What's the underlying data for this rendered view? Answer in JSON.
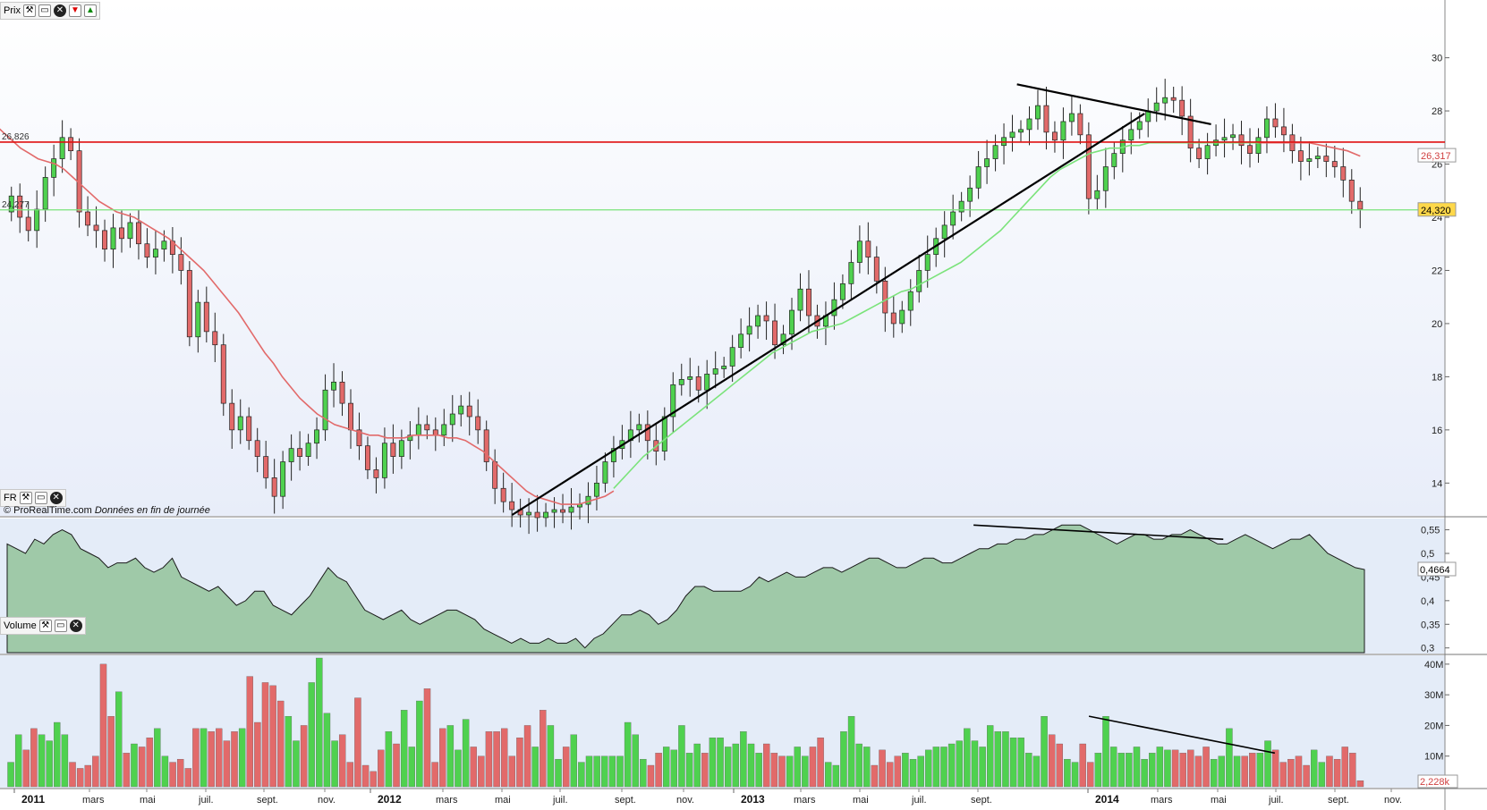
{
  "panels": {
    "price": {
      "label": "Prix"
    },
    "fr": {
      "label": "FR"
    },
    "volume": {
      "label": "Volume"
    }
  },
  "credit": {
    "site": "© ProRealTime.com",
    "source": "Données en fin de journée"
  },
  "colors": {
    "up": "#4fd14f",
    "down": "#e26a6a",
    "ma_long": "#e26a6a",
    "ma_short": "#7be37b",
    "resistance": "#e01010",
    "support": "#7be37b",
    "fr_fill": "#9fc9a8",
    "trendline": "#000000"
  },
  "chart_data": [
    {
      "type": "candlestick",
      "panel": "price",
      "y_ticks": [
        14,
        16,
        18,
        20,
        22,
        24,
        26,
        28,
        30
      ],
      "ylim": [
        12.8,
        31.5
      ],
      "price_labels": {
        "resistance": "26,826",
        "current": "24,320",
        "ma_long": "26,317",
        "support_left": "24,277"
      },
      "horizontal_lines": [
        {
          "name": "resistance",
          "value": 26.826
        },
        {
          "name": "support",
          "value": 24.277
        }
      ],
      "x_axis": {
        "year_labels": [
          "2011",
          "2012",
          "2013",
          "2014"
        ],
        "month_labels": [
          "mars",
          "mai",
          "juil.",
          "sept.",
          "nov.",
          "mars",
          "mai",
          "juil.",
          "sept.",
          "nov.",
          "mars",
          "mai",
          "juil.",
          "sept.",
          "mars",
          "mai",
          "juil.",
          "sept.",
          "nov."
        ]
      },
      "series": [
        {
          "name": "Close",
          "values": [
            24.8,
            24.0,
            23.5,
            24.3,
            25.5,
            26.2,
            27.0,
            26.5,
            24.2,
            23.7,
            23.5,
            22.8,
            23.6,
            23.2,
            23.8,
            23.0,
            22.5,
            22.8,
            23.1,
            22.6,
            22.0,
            19.5,
            20.8,
            19.7,
            19.2,
            17.0,
            16.0,
            16.5,
            15.6,
            15.0,
            14.2,
            13.5,
            14.8,
            15.3,
            15.0,
            15.5,
            16.0,
            17.5,
            17.8,
            17.0,
            16.0,
            15.4,
            14.5,
            14.2,
            15.5,
            15.0,
            15.6,
            15.8,
            16.2,
            16.0,
            15.8,
            16.2,
            16.6,
            16.9,
            16.5,
            16.0,
            14.8,
            13.8,
            13.3,
            13.0,
            12.8,
            12.9,
            12.7,
            12.9,
            13.0,
            12.9,
            13.1,
            13.2,
            13.5,
            14.0,
            14.8,
            15.3,
            15.6,
            16.0,
            16.2,
            15.6,
            15.2,
            16.5,
            17.7,
            17.9,
            18.0,
            17.5,
            18.1,
            18.3,
            18.4,
            19.1,
            19.6,
            19.9,
            20.3,
            20.1,
            19.2,
            19.6,
            20.5,
            21.3,
            20.3,
            19.9,
            20.3,
            20.9,
            21.5,
            22.3,
            23.1,
            22.5,
            21.6,
            20.4,
            20.0,
            20.5,
            21.2,
            22.0,
            22.6,
            23.2,
            23.7,
            24.2,
            24.6,
            25.1,
            25.9,
            26.2,
            26.7,
            27.0,
            27.2,
            27.3,
            27.7,
            28.2,
            27.2,
            26.9,
            27.6,
            27.9,
            27.1,
            24.7,
            25.0,
            25.9,
            26.4,
            26.9,
            27.3,
            27.6,
            28.0,
            28.3,
            28.5,
            28.4,
            27.8,
            26.6,
            26.2,
            26.7,
            26.9,
            27.0,
            27.1,
            26.7,
            26.4,
            27.0,
            27.7,
            27.4,
            27.1,
            26.5,
            26.1,
            26.2,
            26.3,
            26.1,
            25.9,
            25.4,
            24.6,
            24.3
          ],
          "open": [
            24.2,
            24.8,
            24.0,
            23.5,
            24.3,
            25.5,
            26.2,
            27.0,
            26.5,
            24.2,
            23.7,
            23.5,
            22.8,
            23.6,
            23.2,
            23.8,
            23.0,
            22.5,
            22.8,
            23.1,
            22.6,
            22.0,
            19.5,
            20.8,
            19.7,
            19.2,
            17.0,
            16.0,
            16.5,
            15.6,
            15.0,
            14.2,
            13.5,
            14.8,
            15.3,
            15.0,
            15.5,
            16.0,
            17.5,
            17.8,
            17.0,
            16.0,
            15.4,
            14.5,
            14.2,
            15.5,
            15.0,
            15.6,
            15.8,
            16.2,
            16.0,
            15.8,
            16.2,
            16.6,
            16.9,
            16.5,
            16.0,
            14.8,
            13.8,
            13.3,
            13.0,
            12.8,
            12.9,
            12.7,
            12.9,
            13.0,
            12.9,
            13.1,
            13.2,
            13.5,
            14.0,
            14.8,
            15.3,
            15.6,
            16.0,
            16.2,
            15.6,
            15.2,
            16.5,
            17.7,
            17.9,
            18.0,
            17.5,
            18.1,
            18.3,
            18.4,
            19.1,
            19.6,
            19.9,
            20.3,
            20.1,
            19.2,
            19.6,
            20.5,
            21.3,
            20.3,
            19.9,
            20.3,
            20.9,
            21.5,
            22.3,
            23.1,
            22.5,
            21.6,
            20.4,
            20.0,
            20.5,
            21.2,
            22.0,
            22.6,
            23.2,
            23.7,
            24.2,
            24.6,
            25.1,
            25.9,
            26.2,
            26.7,
            27.0,
            27.2,
            27.3,
            27.7,
            28.2,
            27.2,
            26.9,
            27.6,
            27.9,
            27.1,
            24.7,
            25.0,
            25.9,
            26.4,
            26.9,
            27.3,
            27.6,
            28.0,
            28.3,
            28.5,
            28.4,
            27.8,
            26.6,
            26.2,
            26.7,
            26.9,
            27.0,
            27.1,
            26.7,
            26.4,
            27.0,
            27.7,
            27.4,
            27.1,
            26.5,
            26.1,
            26.2,
            26.3,
            26.1,
            25.9,
            25.4,
            24.6
          ]
        },
        {
          "name": "MA long",
          "values": [
            27.5,
            27.2,
            26.9,
            26.6,
            26.4,
            26.2,
            26.1,
            26.0,
            25.8,
            25.5,
            25.2,
            24.9,
            24.6,
            24.4,
            24.2,
            24.1,
            24.0,
            23.8,
            23.6,
            23.4,
            23.2,
            22.9,
            22.6,
            22.3,
            22.0,
            21.6,
            21.2,
            20.8,
            20.4,
            19.9,
            19.4,
            18.9,
            18.5,
            18.0,
            17.6,
            17.2,
            16.9,
            16.6,
            16.4,
            16.2,
            16.1,
            16.0,
            15.9,
            15.8,
            15.8,
            15.7,
            15.7,
            15.7,
            15.8,
            15.8,
            15.8,
            15.8,
            15.7,
            15.7,
            15.6,
            15.4,
            15.2,
            14.9,
            14.6,
            14.3,
            14.0,
            13.7,
            13.5,
            13.4,
            13.3,
            13.2,
            13.2,
            13.2,
            13.3,
            13.4,
            13.5,
            13.7
          ]
        },
        {
          "name": "MA short",
          "values": [
            13.8,
            14.2,
            14.6,
            15.0,
            15.3,
            15.6,
            15.9,
            16.2,
            16.5,
            16.8,
            17.1,
            17.4,
            17.7,
            18.0,
            18.3,
            18.6,
            18.9,
            19.1,
            19.3,
            19.5,
            19.7,
            19.8,
            19.9,
            20.0,
            20.2,
            20.4,
            20.6,
            20.8,
            21.0,
            21.2,
            21.3,
            21.5,
            21.7,
            21.9,
            22.1,
            22.3,
            22.6,
            22.9,
            23.2,
            23.5,
            23.9,
            24.3,
            24.7,
            25.1,
            25.5,
            25.8,
            26.0,
            26.2,
            26.4,
            26.5,
            26.6,
            26.6,
            26.7,
            26.7,
            26.8,
            26.8,
            26.8,
            26.8,
            26.8,
            26.8,
            26.8,
            26.8,
            26.8,
            26.8,
            26.8,
            26.8
          ]
        },
        {
          "name": "MA long (recent)",
          "values": [
            26.8,
            26.8,
            26.8,
            26.8,
            26.8,
            26.7,
            26.6,
            26.5,
            26.3
          ]
        }
      ],
      "trendlines": [
        {
          "from": [
            0.372,
            12.8
          ],
          "to": [
            0.838,
            27.9
          ]
        },
        {
          "from": [
            0.744,
            29.0
          ],
          "to": [
            0.887,
            27.5
          ]
        }
      ]
    },
    {
      "type": "area",
      "panel": "fr",
      "y_ticks": [
        "0,3",
        "0,35",
        "0,4",
        "0,45",
        "0,5",
        "0,55"
      ],
      "ylim": [
        0.29,
        0.57
      ],
      "current_label": "0,4664",
      "values": [
        0.52,
        0.51,
        0.5,
        0.53,
        0.52,
        0.54,
        0.55,
        0.54,
        0.51,
        0.5,
        0.49,
        0.47,
        0.48,
        0.48,
        0.49,
        0.47,
        0.46,
        0.47,
        0.49,
        0.45,
        0.44,
        0.43,
        0.42,
        0.43,
        0.41,
        0.39,
        0.4,
        0.42,
        0.42,
        0.39,
        0.38,
        0.37,
        0.39,
        0.41,
        0.44,
        0.47,
        0.45,
        0.44,
        0.41,
        0.38,
        0.37,
        0.36,
        0.37,
        0.38,
        0.36,
        0.35,
        0.36,
        0.37,
        0.38,
        0.38,
        0.37,
        0.36,
        0.34,
        0.33,
        0.32,
        0.31,
        0.32,
        0.31,
        0.31,
        0.32,
        0.31,
        0.31,
        0.32,
        0.3,
        0.32,
        0.33,
        0.35,
        0.37,
        0.37,
        0.38,
        0.37,
        0.35,
        0.36,
        0.38,
        0.41,
        0.43,
        0.43,
        0.42,
        0.42,
        0.42,
        0.42,
        0.43,
        0.45,
        0.44,
        0.45,
        0.46,
        0.45,
        0.45,
        0.46,
        0.47,
        0.47,
        0.46,
        0.47,
        0.48,
        0.49,
        0.49,
        0.48,
        0.47,
        0.47,
        0.48,
        0.49,
        0.49,
        0.48,
        0.48,
        0.49,
        0.5,
        0.51,
        0.51,
        0.52,
        0.52,
        0.53,
        0.53,
        0.54,
        0.54,
        0.55,
        0.56,
        0.56,
        0.56,
        0.55,
        0.54,
        0.53,
        0.52,
        0.53,
        0.54,
        0.54,
        0.53,
        0.53,
        0.54,
        0.54,
        0.55,
        0.54,
        0.53,
        0.52,
        0.52,
        0.53,
        0.54,
        0.53,
        0.52,
        0.51,
        0.52,
        0.53,
        0.53,
        0.54,
        0.52,
        0.5,
        0.49,
        0.48,
        0.47,
        0.466
      ],
      "trendline": {
        "from": [
          0.712,
          0.56
        ],
        "to": [
          0.896,
          0.53
        ]
      }
    },
    {
      "type": "bar",
      "panel": "volume",
      "y_ticks": [
        "10M",
        "20M",
        "30M",
        "40M"
      ],
      "ylim": [
        0,
        42
      ],
      "current_label": "2,228k",
      "values": [
        8,
        17,
        12,
        19,
        17,
        15,
        21,
        17,
        8,
        6,
        7,
        10,
        40,
        23,
        31,
        11,
        14,
        13,
        16,
        19,
        10,
        8,
        9,
        6,
        19,
        19,
        18,
        19,
        15,
        18,
        19,
        36,
        21,
        34,
        33,
        28,
        23,
        15,
        20,
        34,
        42,
        24,
        15,
        17,
        8,
        29,
        7,
        5,
        12,
        18,
        14,
        25,
        13,
        28,
        32,
        8,
        19,
        20,
        12,
        22,
        13,
        10,
        18,
        18,
        19,
        10,
        16,
        20,
        13,
        25,
        20,
        9,
        13,
        17,
        8,
        10,
        10,
        10,
        10,
        10,
        21,
        17,
        9,
        7,
        11,
        13,
        12,
        20,
        11,
        14,
        11,
        16,
        16,
        13,
        14,
        18,
        14,
        11,
        14,
        11,
        10,
        10,
        13,
        10,
        13,
        16,
        8,
        7,
        18,
        23,
        14,
        13,
        7,
        12,
        8,
        10,
        11,
        9,
        10,
        12,
        13,
        13,
        14,
        15,
        19,
        15,
        13,
        20,
        18,
        18,
        16,
        16,
        11,
        10,
        23,
        17,
        14,
        9,
        8,
        14,
        8,
        11,
        23,
        13,
        11,
        11,
        13,
        9,
        11,
        13,
        12,
        12,
        11,
        12,
        10,
        13,
        9,
        10,
        19,
        10,
        10,
        11,
        11,
        15,
        12,
        8,
        9,
        10,
        7,
        12,
        8,
        10,
        9,
        13,
        11,
        2
      ]
    }
  ]
}
